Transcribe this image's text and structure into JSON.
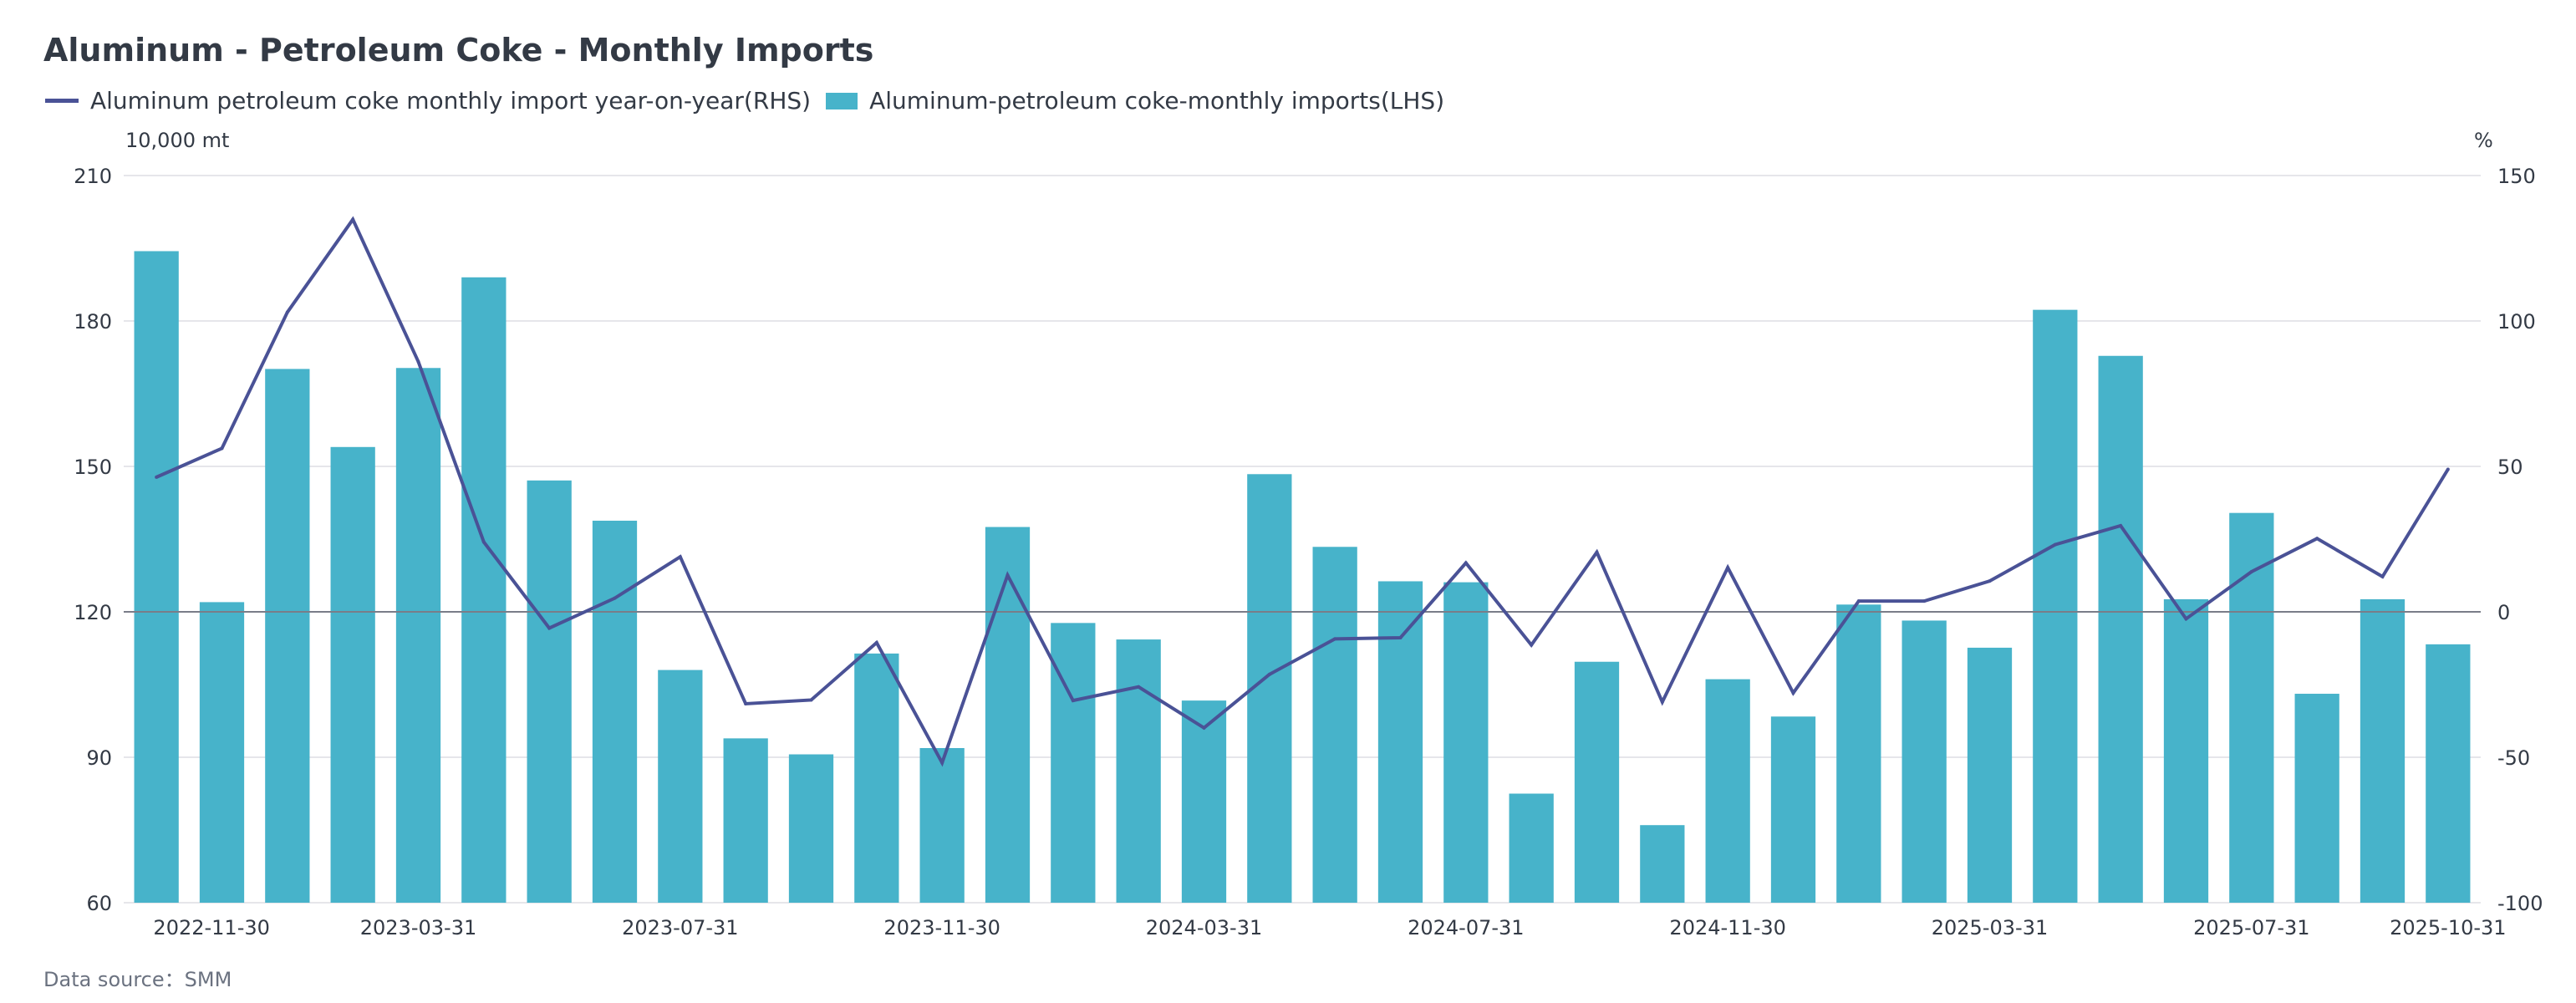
{
  "chart_data": {
    "type": "bar",
    "title": "Aluminum - Petroleum Coke - Monthly Imports",
    "legend_placement": "top-left",
    "legend": [
      {
        "name": "Aluminum petroleum coke monthly import year-on-year(RHS)",
        "kind": "line",
        "color": "#4a5296"
      },
      {
        "name": "Aluminum-petroleum coke-monthly imports(LHS)",
        "kind": "bar",
        "color": "#47b3ca"
      }
    ],
    "ylabel_left": "10,000 mt",
    "ylabel_right": "%",
    "ylim_left": [
      60,
      210
    ],
    "ylim_right": [
      -100,
      150
    ],
    "yticks_left": [
      "210",
      "180",
      "150",
      "120",
      "90",
      "60"
    ],
    "yticks_left_values": [
      210,
      180,
      150,
      120,
      90,
      60
    ],
    "yticks_right": [
      "150",
      "100",
      "50",
      "0",
      "-50",
      "-100"
    ],
    "yticks_right_values": [
      150,
      100,
      50,
      0,
      -50,
      -100
    ],
    "grid": true,
    "x": [
      "2022-11-30",
      "2022-12-31",
      "2023-01-31",
      "2023-02-28",
      "2023-03-31",
      "2023-04-30",
      "2023-05-31",
      "2023-06-30",
      "2023-07-31",
      "2023-08-31",
      "2023-09-30",
      "2023-10-31",
      "2023-11-30",
      "2023-12-31",
      "2024-01-31",
      "2024-02-29",
      "2024-03-31",
      "2024-04-30",
      "2024-05-31",
      "2024-06-30",
      "2024-07-31",
      "2024-08-31",
      "2024-09-30",
      "2024-10-31",
      "2024-11-30",
      "2024-12-31",
      "2025-01-31",
      "2025-02-28",
      "2025-03-31",
      "2025-04-30",
      "2025-05-31",
      "2025-06-30",
      "2025-07-31",
      "2025-08-31",
      "2025-09-30",
      "2025-10-31"
    ],
    "xtick_labels": [
      {
        "index": 0,
        "label": "2022-11-30"
      },
      {
        "index": 4,
        "label": "2023-03-31"
      },
      {
        "index": 8,
        "label": "2023-07-31"
      },
      {
        "index": 12,
        "label": "2023-11-30"
      },
      {
        "index": 16,
        "label": "2024-03-31"
      },
      {
        "index": 20,
        "label": "2024-07-31"
      },
      {
        "index": 24,
        "label": "2024-11-30"
      },
      {
        "index": 28,
        "label": "2025-03-31"
      },
      {
        "index": 32,
        "label": "2025-07-31"
      },
      {
        "index": 35,
        "label": "2025-10-31"
      }
    ],
    "series": [
      {
        "name": "Aluminum-petroleum coke-monthly imports(LHS)",
        "type": "bar",
        "axis": "left",
        "color": "#47b3ca",
        "values": [
          194.4,
          122.0,
          170.1,
          154.0,
          170.3,
          189.0,
          147.1,
          138.8,
          108.0,
          93.9,
          90.6,
          111.4,
          91.9,
          137.5,
          117.7,
          114.3,
          101.7,
          148.4,
          133.4,
          126.3,
          126.1,
          82.5,
          109.7,
          76.0,
          106.1,
          98.4,
          121.5,
          118.2,
          112.6,
          182.3,
          172.8,
          122.6,
          140.4,
          103.1,
          122.6,
          113.3
        ]
      },
      {
        "name": "Aluminum petroleum coke monthly import year-on-year(RHS)",
        "type": "line",
        "axis": "right",
        "color": "#4a5296",
        "values": [
          46.3,
          56.2,
          103.0,
          134.9,
          86.0,
          24.0,
          -5.6,
          4.7,
          18.9,
          -31.6,
          -30.3,
          -10.6,
          -51.9,
          12.6,
          -30.5,
          -25.8,
          -39.9,
          -21.5,
          -9.3,
          -8.9,
          16.8,
          -11.4,
          20.5,
          -31.0,
          15.2,
          -27.9,
          3.7,
          3.7,
          10.6,
          23.1,
          29.6,
          -2.4,
          13.8,
          25.2,
          12.1,
          49.0
        ]
      }
    ],
    "source": "Data source：SMM"
  }
}
